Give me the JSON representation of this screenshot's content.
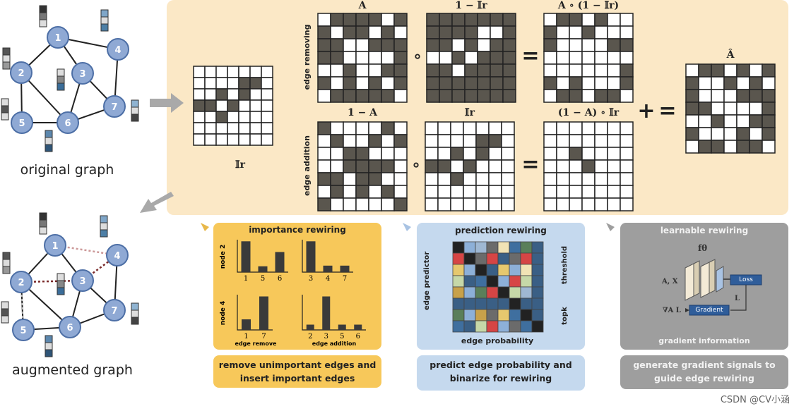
{
  "graphs": {
    "original_caption": "original graph",
    "augmented_caption": "augmented graph",
    "node_labels": [
      "1",
      "2",
      "3",
      "4",
      "5",
      "6",
      "7"
    ]
  },
  "matrices": {
    "ir_label": "𝕀r",
    "a_title": "A",
    "one_minus_ir_title": "1 − 𝕀r",
    "a_times_title": "A ∘ (1 − 𝕀r)",
    "one_minus_a_title": "1 − A",
    "ir_title": "𝕀r",
    "one_minus_a_times_title": "(1 − A) ∘ 𝕀r",
    "a_hat_title": "Â",
    "edge_removing_label": "edge removing",
    "edge_addition_label": "edge addition",
    "hadamard_symbol": "∘",
    "equals_symbol": "=",
    "plus_symbol": "+"
  },
  "importance": {
    "title": "importance rewiring",
    "node2_label": "node 2",
    "node4_label": "node 4",
    "chart_a_ticks": [
      "1",
      "5",
      "6"
    ],
    "chart_a_values": [
      0.95,
      0.18,
      0.62
    ],
    "chart_b_ticks": [
      "3",
      "4",
      "7"
    ],
    "chart_b_values": [
      0.95,
      0.2,
      0.2
    ],
    "chart_c_ticks": [
      "1",
      "7"
    ],
    "chart_c_values": [
      0.3,
      0.95
    ],
    "chart_d_ticks": [
      "2",
      "3",
      "5",
      "6"
    ],
    "chart_d_values": [
      0.15,
      0.95,
      0.15,
      0.15
    ],
    "edge_remove_label": "edge remove",
    "edge_addition_label": "edge addition",
    "description": "remove unimportant edges and insert important edges"
  },
  "prediction": {
    "title": "prediction rewiring",
    "edge_predictor_label": "edge predictor",
    "threshold_label": "threshold",
    "topk_label": "topk",
    "edge_probability_label": "edge probability",
    "description": "predict edge probability and binarize for rewiring"
  },
  "learnable": {
    "title": "learnable rewiring",
    "f_label": "fθ",
    "input_label": "A, X",
    "loss_label": "Loss",
    "gradient_label": "Gradient",
    "grad_label": "∇A L",
    "l_label": "L",
    "info_label": "gradient information",
    "description": "generate gradient signals to guide edge rewiring"
  },
  "watermark": "CSDN @CV小涵",
  "colors": {
    "panel_tan": "#fbe8c6",
    "yellow_box": "#f7c85a",
    "blue_box": "#c5d9ee",
    "gray_box": "#9e9e9e",
    "node_fill": "#8fa9d4",
    "matrix_dark": "#5a564e"
  }
}
